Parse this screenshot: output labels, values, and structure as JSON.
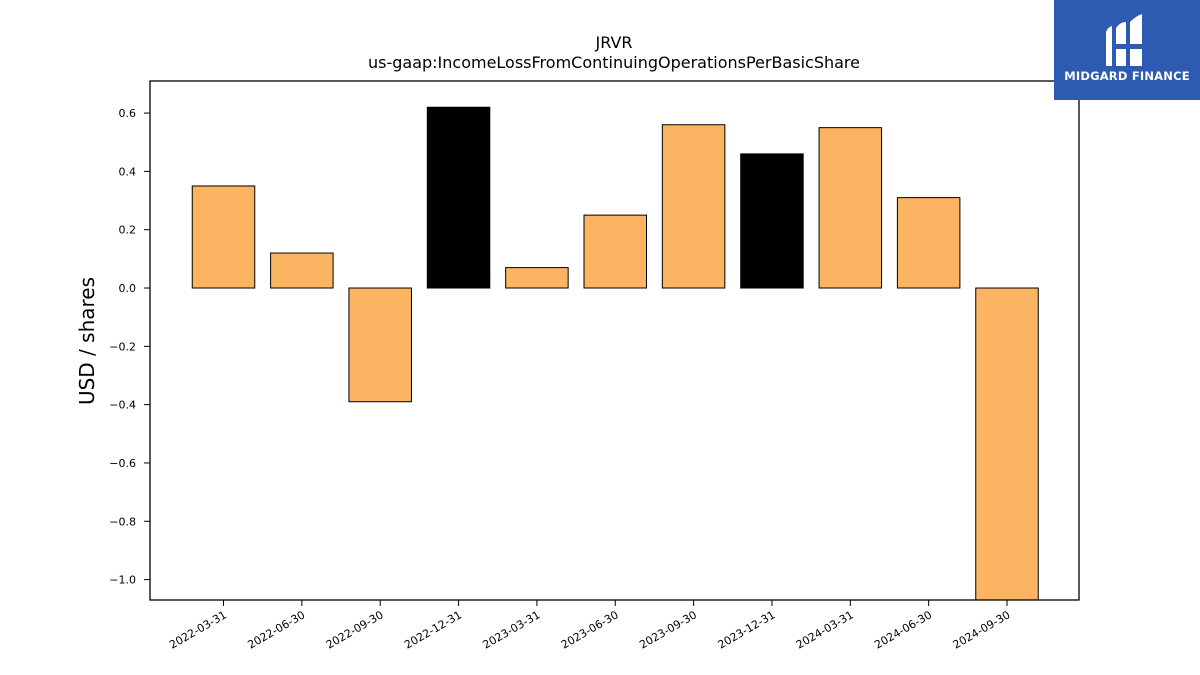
{
  "chart_data": {
    "type": "bar",
    "title": "JRVR",
    "subtitle": "us-gaap:IncomeLossFromContinuingOperationsPerBasicShare",
    "xlabel": "",
    "ylabel": "USD / shares",
    "categories": [
      "2022-03-31",
      "2022-06-30",
      "2022-09-30",
      "2022-12-31",
      "2023-03-31",
      "2023-06-30",
      "2023-09-30",
      "2023-12-31",
      "2024-03-31",
      "2024-06-30",
      "2024-09-30"
    ],
    "values": [
      0.35,
      0.12,
      -0.39,
      0.62,
      0.07,
      0.25,
      0.56,
      0.46,
      0.55,
      0.31,
      -1.07
    ],
    "bar_colors": [
      "#fbb462",
      "#fbb462",
      "#fbb462",
      "#000000",
      "#fbb462",
      "#fbb462",
      "#fbb462",
      "#000000",
      "#fbb462",
      "#fbb462",
      "#fbb462"
    ],
    "ylim": [
      -1.07,
      0.71
    ],
    "yticks": [
      0.6,
      0.4,
      0.2,
      0.0,
      -0.2,
      -0.4,
      -0.6,
      -0.8,
      -1.0
    ],
    "ytick_labels": [
      "0.6",
      "0.4",
      "0.2",
      "0.0",
      "−0.2",
      "−0.4",
      "−0.6",
      "−0.8",
      "−1.0"
    ],
    "grid": false,
    "legend": "none"
  },
  "logo": {
    "text": "MIDGARD FINANCE",
    "icon": "midgard-logo-icon",
    "background": "#2d5bb1"
  }
}
